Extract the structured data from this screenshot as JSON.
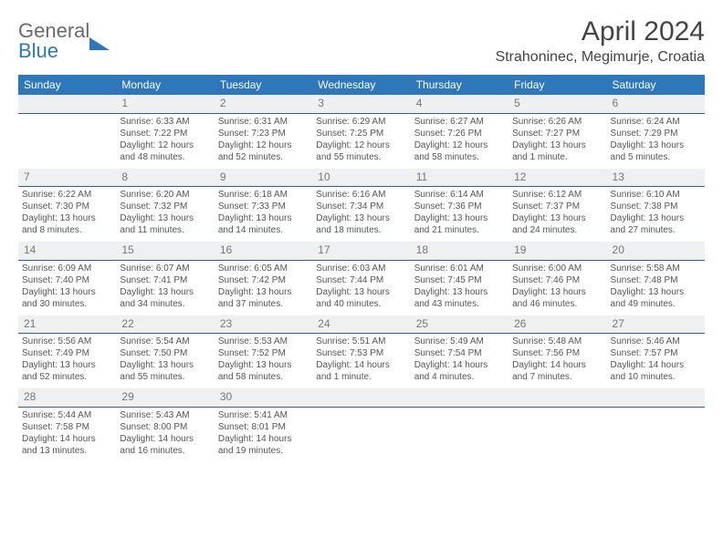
{
  "brand": {
    "word1": "General",
    "word2": "Blue"
  },
  "header": {
    "title": "April 2024",
    "location": "Strahoninec, Megimurje, Croatia"
  },
  "colors": {
    "header_bg": "#2e77bb",
    "header_text": "#ffffff",
    "daynum_bg": "#eef0f2",
    "daynum_border": "#2e5f8f",
    "body_text": "#555555",
    "brand_gray": "#6a6a6a",
    "brand_blue": "#2e77bb"
  },
  "weekdays": [
    "Sunday",
    "Monday",
    "Tuesday",
    "Wednesday",
    "Thursday",
    "Friday",
    "Saturday"
  ],
  "weeks": [
    {
      "nums": [
        "",
        "1",
        "2",
        "3",
        "4",
        "5",
        "6"
      ],
      "cells": [
        [],
        [
          "Sunrise: 6:33 AM",
          "Sunset: 7:22 PM",
          "Daylight: 12 hours",
          "and 48 minutes."
        ],
        [
          "Sunrise: 6:31 AM",
          "Sunset: 7:23 PM",
          "Daylight: 12 hours",
          "and 52 minutes."
        ],
        [
          "Sunrise: 6:29 AM",
          "Sunset: 7:25 PM",
          "Daylight: 12 hours",
          "and 55 minutes."
        ],
        [
          "Sunrise: 6:27 AM",
          "Sunset: 7:26 PM",
          "Daylight: 12 hours",
          "and 58 minutes."
        ],
        [
          "Sunrise: 6:26 AM",
          "Sunset: 7:27 PM",
          "Daylight: 13 hours",
          "and 1 minute."
        ],
        [
          "Sunrise: 6:24 AM",
          "Sunset: 7:29 PM",
          "Daylight: 13 hours",
          "and 5 minutes."
        ]
      ]
    },
    {
      "nums": [
        "7",
        "8",
        "9",
        "10",
        "11",
        "12",
        "13"
      ],
      "cells": [
        [
          "Sunrise: 6:22 AM",
          "Sunset: 7:30 PM",
          "Daylight: 13 hours",
          "and 8 minutes."
        ],
        [
          "Sunrise: 6:20 AM",
          "Sunset: 7:32 PM",
          "Daylight: 13 hours",
          "and 11 minutes."
        ],
        [
          "Sunrise: 6:18 AM",
          "Sunset: 7:33 PM",
          "Daylight: 13 hours",
          "and 14 minutes."
        ],
        [
          "Sunrise: 6:16 AM",
          "Sunset: 7:34 PM",
          "Daylight: 13 hours",
          "and 18 minutes."
        ],
        [
          "Sunrise: 6:14 AM",
          "Sunset: 7:36 PM",
          "Daylight: 13 hours",
          "and 21 minutes."
        ],
        [
          "Sunrise: 6:12 AM",
          "Sunset: 7:37 PM",
          "Daylight: 13 hours",
          "and 24 minutes."
        ],
        [
          "Sunrise: 6:10 AM",
          "Sunset: 7:38 PM",
          "Daylight: 13 hours",
          "and 27 minutes."
        ]
      ]
    },
    {
      "nums": [
        "14",
        "15",
        "16",
        "17",
        "18",
        "19",
        "20"
      ],
      "cells": [
        [
          "Sunrise: 6:09 AM",
          "Sunset: 7:40 PM",
          "Daylight: 13 hours",
          "and 30 minutes."
        ],
        [
          "Sunrise: 6:07 AM",
          "Sunset: 7:41 PM",
          "Daylight: 13 hours",
          "and 34 minutes."
        ],
        [
          "Sunrise: 6:05 AM",
          "Sunset: 7:42 PM",
          "Daylight: 13 hours",
          "and 37 minutes."
        ],
        [
          "Sunrise: 6:03 AM",
          "Sunset: 7:44 PM",
          "Daylight: 13 hours",
          "and 40 minutes."
        ],
        [
          "Sunrise: 6:01 AM",
          "Sunset: 7:45 PM",
          "Daylight: 13 hours",
          "and 43 minutes."
        ],
        [
          "Sunrise: 6:00 AM",
          "Sunset: 7:46 PM",
          "Daylight: 13 hours",
          "and 46 minutes."
        ],
        [
          "Sunrise: 5:58 AM",
          "Sunset: 7:48 PM",
          "Daylight: 13 hours",
          "and 49 minutes."
        ]
      ]
    },
    {
      "nums": [
        "21",
        "22",
        "23",
        "24",
        "25",
        "26",
        "27"
      ],
      "cells": [
        [
          "Sunrise: 5:56 AM",
          "Sunset: 7:49 PM",
          "Daylight: 13 hours",
          "and 52 minutes."
        ],
        [
          "Sunrise: 5:54 AM",
          "Sunset: 7:50 PM",
          "Daylight: 13 hours",
          "and 55 minutes."
        ],
        [
          "Sunrise: 5:53 AM",
          "Sunset: 7:52 PM",
          "Daylight: 13 hours",
          "and 58 minutes."
        ],
        [
          "Sunrise: 5:51 AM",
          "Sunset: 7:53 PM",
          "Daylight: 14 hours",
          "and 1 minute."
        ],
        [
          "Sunrise: 5:49 AM",
          "Sunset: 7:54 PM",
          "Daylight: 14 hours",
          "and 4 minutes."
        ],
        [
          "Sunrise: 5:48 AM",
          "Sunset: 7:56 PM",
          "Daylight: 14 hours",
          "and 7 minutes."
        ],
        [
          "Sunrise: 5:46 AM",
          "Sunset: 7:57 PM",
          "Daylight: 14 hours",
          "and 10 minutes."
        ]
      ]
    },
    {
      "nums": [
        "28",
        "29",
        "30",
        "",
        "",
        "",
        ""
      ],
      "cells": [
        [
          "Sunrise: 5:44 AM",
          "Sunset: 7:58 PM",
          "Daylight: 14 hours",
          "and 13 minutes."
        ],
        [
          "Sunrise: 5:43 AM",
          "Sunset: 8:00 PM",
          "Daylight: 14 hours",
          "and 16 minutes."
        ],
        [
          "Sunrise: 5:41 AM",
          "Sunset: 8:01 PM",
          "Daylight: 14 hours",
          "and 19 minutes."
        ],
        [],
        [],
        [],
        []
      ]
    }
  ]
}
